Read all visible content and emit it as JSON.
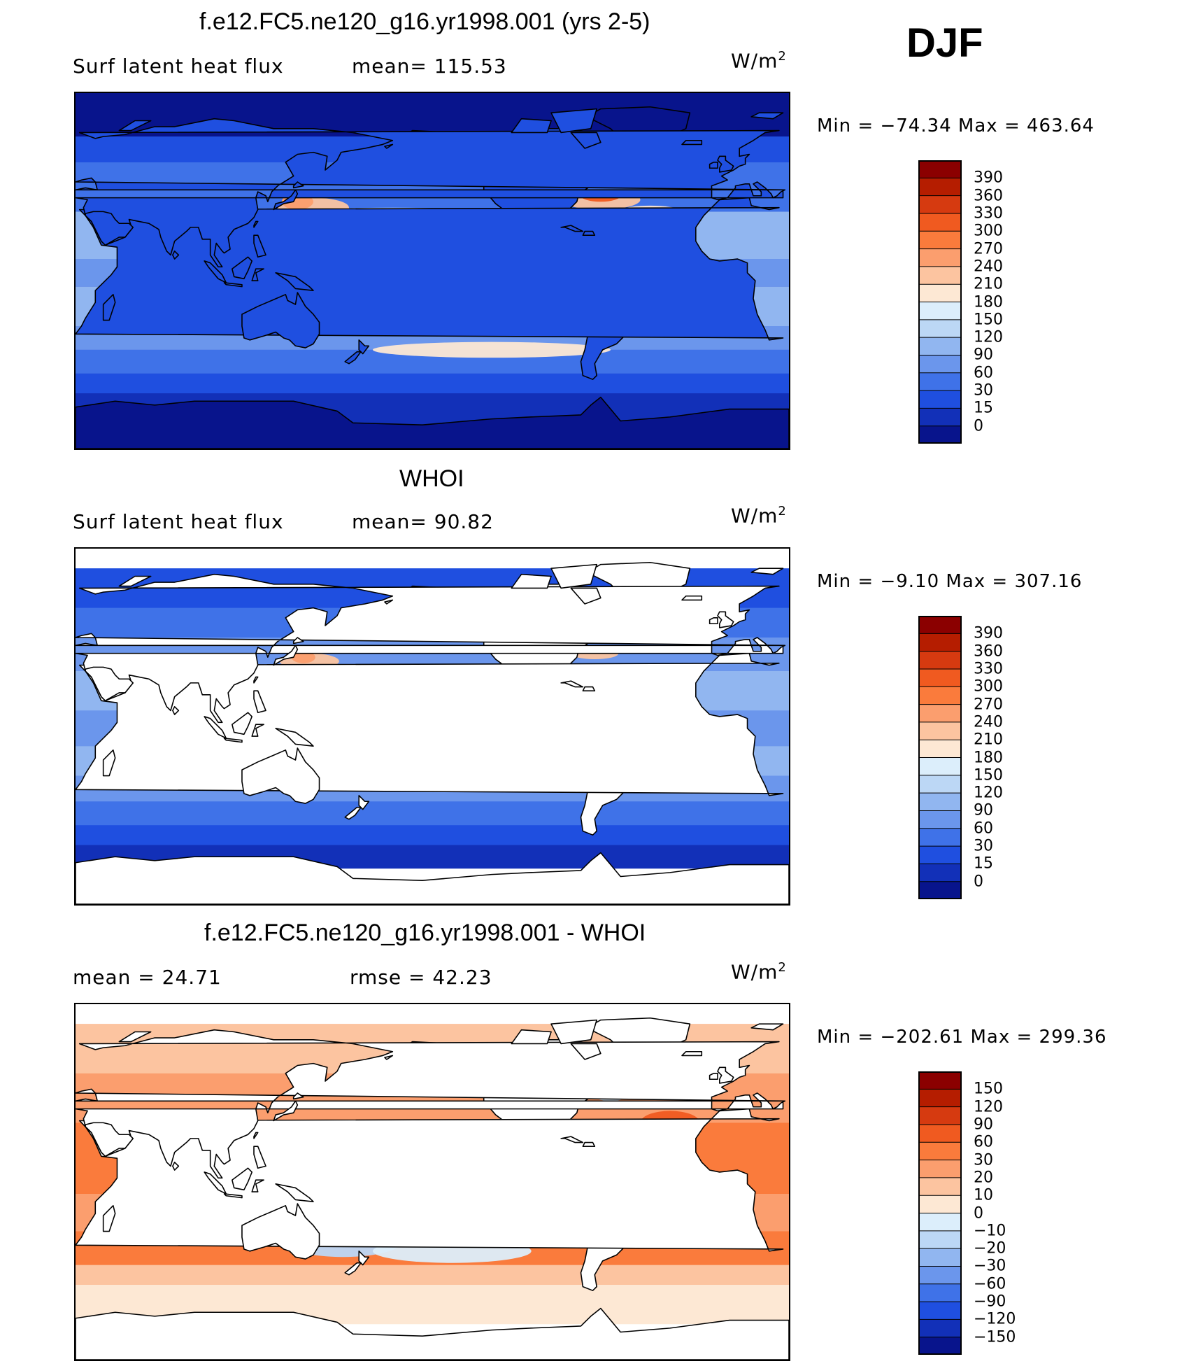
{
  "season": "DJF",
  "panels": [
    {
      "title": "f.e12.FC5.ne120_g16.yr1998.001 (yrs 2-5)",
      "left_text": "Surf  latent  heat  flux",
      "center_text": "mean=  115.53",
      "units": "W/m",
      "units_sup": "2",
      "minmax": "Min  =  −74.34  Max  =  463.64",
      "colorbar_labels": [
        "390",
        "360",
        "330",
        "300",
        "270",
        "240",
        "210",
        "180",
        "150",
        "120",
        "90",
        "60",
        "30",
        "15",
        "0"
      ],
      "colorbar_colors": [
        "#8b0000",
        "#b51d00",
        "#d63a10",
        "#f05a20",
        "#fa7b3c",
        "#fb9e6e",
        "#fcc4a0",
        "#fde8d4",
        "#dceefb",
        "#bcd7f5",
        "#91b6f0",
        "#6b96ec",
        "#3f72e8",
        "#1f4fe0",
        "#1230b8",
        "#08148c"
      ],
      "field": "model"
    },
    {
      "title": "WHOI",
      "left_text": "Surf  latent  heat  flux",
      "center_text": "mean=   90.82",
      "units": "W/m",
      "units_sup": "2",
      "minmax": "Min  =   −9.10  Max  =  307.16",
      "colorbar_labels": [
        "390",
        "360",
        "330",
        "300",
        "270",
        "240",
        "210",
        "180",
        "150",
        "120",
        "90",
        "60",
        "30",
        "15",
        "0"
      ],
      "colorbar_colors": [
        "#8b0000",
        "#b51d00",
        "#d63a10",
        "#f05a20",
        "#fa7b3c",
        "#fb9e6e",
        "#fcc4a0",
        "#fde8d4",
        "#dceefb",
        "#bcd7f5",
        "#91b6f0",
        "#6b96ec",
        "#3f72e8",
        "#1f4fe0",
        "#1230b8",
        "#08148c"
      ],
      "field": "obs"
    },
    {
      "title": "f.e12.FC5.ne120_g16.yr1998.001 - WHOI",
      "left_text": "mean  =    24.71",
      "center_text": "rmse  =    42.23",
      "units": "W/m",
      "units_sup": "2",
      "minmax": "Min  =  −202.61  Max  =  299.36",
      "colorbar_labels": [
        "150",
        "120",
        "90",
        "60",
        "30",
        "20",
        "10",
        "0",
        "−10",
        "−20",
        "−30",
        "−60",
        "−90",
        "−120",
        "−150"
      ],
      "colorbar_colors": [
        "#8b0000",
        "#b51d00",
        "#d63a10",
        "#f05a20",
        "#fa7b3c",
        "#fb9e6e",
        "#fcc4a0",
        "#fde8d4",
        "#dceefb",
        "#bcd7f5",
        "#91b6f0",
        "#6b96ec",
        "#3f72e8",
        "#1f4fe0",
        "#1230b8",
        "#08148c"
      ],
      "field": "diff"
    }
  ],
  "chart_data": [
    {
      "type": "heatmap",
      "title": "f.e12.FC5.ne120_g16.yr1998.001 (yrs 2-5)",
      "variable": "Surf latent heat flux",
      "units": "W/m2",
      "mean": 115.53,
      "min": -74.34,
      "max": 463.64,
      "levels": [
        0,
        15,
        30,
        60,
        90,
        120,
        150,
        180,
        210,
        240,
        270,
        300,
        330,
        360,
        390
      ]
    },
    {
      "type": "heatmap",
      "title": "WHOI",
      "variable": "Surf latent heat flux",
      "units": "W/m2",
      "mean": 90.82,
      "min": -9.1,
      "max": 307.16,
      "levels": [
        0,
        15,
        30,
        60,
        90,
        120,
        150,
        180,
        210,
        240,
        270,
        300,
        330,
        360,
        390
      ]
    },
    {
      "type": "heatmap",
      "title": "f.e12.FC5.ne120_g16.yr1998.001 - WHOI",
      "units": "W/m2",
      "mean": 24.71,
      "rmse": 42.23,
      "min": -202.61,
      "max": 299.36,
      "levels": [
        -150,
        -120,
        -90,
        -60,
        -30,
        -20,
        -10,
        0,
        10,
        20,
        30,
        60,
        90,
        120,
        150
      ]
    }
  ]
}
